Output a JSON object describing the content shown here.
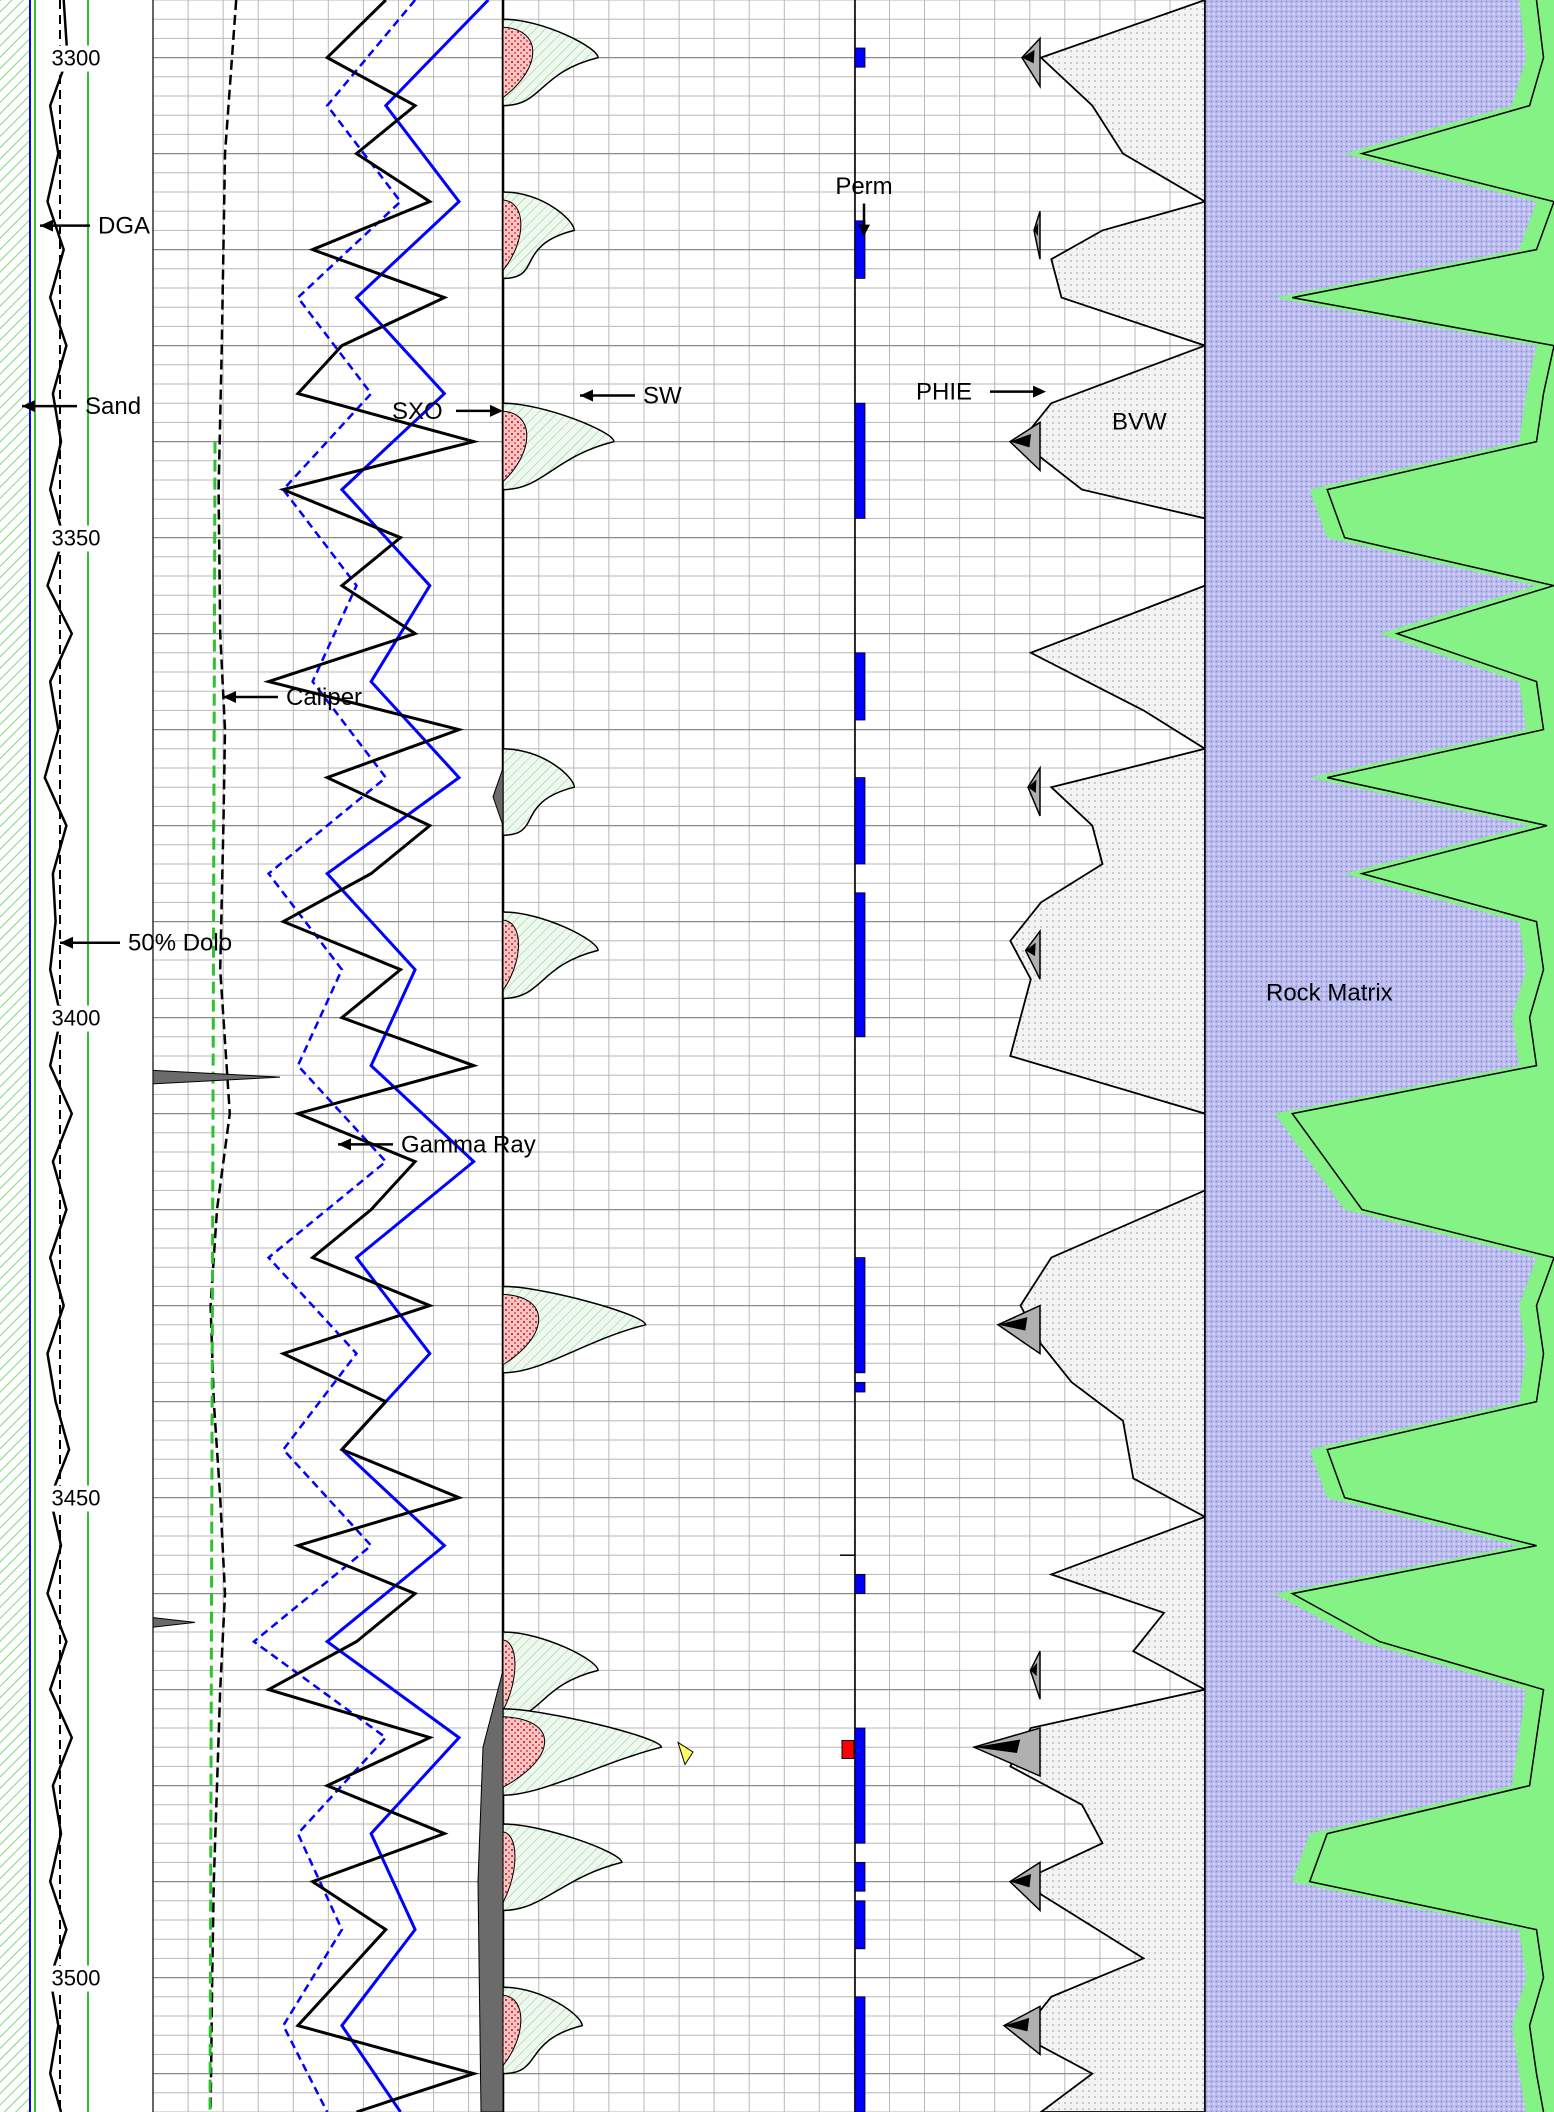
{
  "chart_data": {
    "type": "line",
    "depth_axis": {
      "start": 3294,
      "end": 3514,
      "labels": [
        3300,
        3350,
        3400,
        3450,
        3500
      ]
    },
    "colors": {
      "gamma_ray": "#000000",
      "caliper": "#000000",
      "resistivity_deep": "#0000ff",
      "resistivity_shallow": "#0000ff",
      "perm": "#0000ff",
      "perm_alert": "#ff0000",
      "rock_matrix_fill": "#b9bbee",
      "shale_fill": "#84f284",
      "bvw_fill": "#f0f0f0",
      "phie_fill": "#b0b0b0",
      "sw_fill": "#e4f4e4",
      "sxo_fill": "#f2b4b4",
      "clay_fill": "#6b6b6b"
    },
    "annotations": {
      "dga": "DGA",
      "sand": "Sand",
      "dolo": "50% Dolo",
      "caliper": "Caliper",
      "gamma_ray": "Gamma Ray",
      "sxo": "SXO",
      "sw": "SW",
      "perm": "Perm",
      "phie": "PHIE",
      "bvw": "BVW",
      "rock_matrix": "Rock Matrix"
    },
    "tracks": {
      "lithology_dga": {
        "depth": [
          3294,
          3300,
          3305,
          3310,
          3315,
          3320,
          3325,
          3330,
          3335,
          3340,
          3345,
          3350,
          3355,
          3360,
          3365,
          3370,
          3375,
          3380,
          3385,
          3390,
          3395,
          3400,
          3405,
          3410,
          3415,
          3420,
          3425,
          3430,
          3435,
          3440,
          3445,
          3450,
          3455,
          3460,
          3465,
          3470,
          3475,
          3480,
          3485,
          3490,
          3495,
          3500,
          3505,
          3510,
          3514
        ],
        "value": [
          0.55,
          0.62,
          0.3,
          0.45,
          0.25,
          0.55,
          0.3,
          0.6,
          0.35,
          0.5,
          0.3,
          0.55,
          0.25,
          0.7,
          0.3,
          0.45,
          0.2,
          0.6,
          0.35,
          0.4,
          0.3,
          0.5,
          0.3,
          0.7,
          0.35,
          0.6,
          0.3,
          0.55,
          0.25,
          0.4,
          0.65,
          0.3,
          0.5,
          0.25,
          0.6,
          0.3,
          0.7,
          0.35,
          0.5,
          0.3,
          0.6,
          0.3,
          0.45,
          0.3,
          0.5
        ]
      },
      "caliper": {
        "depth": [
          3294,
          3310,
          3330,
          3345,
          3360,
          3370,
          3380,
          3395,
          3410,
          3420,
          3430,
          3440,
          3450,
          3460,
          3470,
          3480,
          3490,
          3500,
          3514
        ],
        "value": [
          0.52,
          0.45,
          0.43,
          0.41,
          0.42,
          0.45,
          0.44,
          0.42,
          0.48,
          0.4,
          0.36,
          0.38,
          0.42,
          0.45,
          0.42,
          0.4,
          0.38,
          0.37,
          0.36
        ]
      },
      "gamma_ray": {
        "depth": [
          3294,
          3300,
          3305,
          3310,
          3315,
          3320,
          3325,
          3330,
          3335,
          3340,
          3345,
          3350,
          3355,
          3360,
          3365,
          3370,
          3375,
          3380,
          3385,
          3390,
          3395,
          3400,
          3405,
          3410,
          3415,
          3420,
          3425,
          3430,
          3435,
          3440,
          3445,
          3450,
          3455,
          3460,
          3465,
          3470,
          3475,
          3480,
          3485,
          3490,
          3495,
          3500,
          3505,
          3510,
          3514
        ],
        "value": [
          60,
          40,
          70,
          50,
          75,
          35,
          80,
          45,
          30,
          90,
          25,
          65,
          45,
          70,
          20,
          85,
          40,
          75,
          55,
          25,
          65,
          45,
          90,
          30,
          70,
          55,
          35,
          75,
          25,
          60,
          45,
          85,
          30,
          70,
          50,
          20,
          75,
          40,
          80,
          35,
          60,
          45,
          30,
          90,
          50
        ]
      },
      "resistivity_deep": {
        "depth": [
          3294,
          3305,
          3315,
          3325,
          3335,
          3345,
          3355,
          3365,
          3375,
          3385,
          3395,
          3405,
          3415,
          3425,
          3435,
          3445,
          3455,
          3465,
          3475,
          3485,
          3495,
          3505,
          3514
        ],
        "value": [
          95,
          60,
          85,
          50,
          80,
          45,
          75,
          55,
          85,
          40,
          70,
          55,
          90,
          50,
          75,
          45,
          80,
          40,
          85,
          55,
          70,
          45,
          65
        ]
      },
      "resistivity_shallow": {
        "depth": [
          3294,
          3305,
          3315,
          3325,
          3335,
          3345,
          3355,
          3365,
          3375,
          3385,
          3395,
          3405,
          3415,
          3425,
          3435,
          3445,
          3455,
          3465,
          3475,
          3485,
          3495,
          3505,
          3514
        ],
        "value": [
          70,
          40,
          65,
          30,
          55,
          25,
          50,
          35,
          60,
          20,
          45,
          30,
          60,
          20,
          50,
          25,
          55,
          15,
          60,
          30,
          45,
          25,
          40
        ]
      },
      "saturation_events": [
        {
          "depth": 3300,
          "sw_peak": 0.6,
          "sxo_peak": 0.2
        },
        {
          "depth": 3318,
          "sw_peak": 0.45,
          "sxo_peak": 0.1
        },
        {
          "depth": 3340,
          "sw_peak": 0.7,
          "sxo_peak": 0.15
        },
        {
          "depth": 3376,
          "sw_peak": 0.45,
          "sxo_peak": 0.0
        },
        {
          "depth": 3393,
          "sw_peak": 0.6,
          "sxo_peak": 0.08
        },
        {
          "depth": 3432,
          "sw_peak": 0.9,
          "sxo_peak": 0.25
        },
        {
          "depth": 3468,
          "sw_peak": 0.6,
          "sxo_peak": 0.05
        },
        {
          "depth": 3476,
          "sw_peak": 1.0,
          "sxo_peak": 0.3
        },
        {
          "depth": 3488,
          "sw_peak": 0.75,
          "sxo_peak": 0.05
        },
        {
          "depth": 3505,
          "sw_peak": 0.5,
          "sxo_peak": 0.1
        }
      ],
      "perm_segments": [
        {
          "top": 3299,
          "base": 3301
        },
        {
          "top": 3317,
          "base": 3323
        },
        {
          "top": 3336,
          "base": 3348
        },
        {
          "top": 3362,
          "base": 3369
        },
        {
          "top": 3375,
          "base": 3384
        },
        {
          "top": 3387,
          "base": 3402
        },
        {
          "top": 3425,
          "base": 3437
        },
        {
          "top": 3438,
          "base": 3439
        },
        {
          "top": 3458,
          "base": 3460
        },
        {
          "top": 3474,
          "base": 3486
        },
        {
          "top": 3488,
          "base": 3491
        },
        {
          "top": 3492,
          "base": 3497
        },
        {
          "top": 3502,
          "base": 3514
        }
      ],
      "bvw": {
        "depth": [
          3294,
          3300,
          3305,
          3310,
          3315,
          3318,
          3321,
          3325,
          3330,
          3336,
          3340,
          3345,
          3348,
          3355,
          3362,
          3368,
          3372,
          3376,
          3380,
          3384,
          3388,
          3392,
          3396,
          3400,
          3404,
          3410,
          3418,
          3425,
          3430,
          3434,
          3438,
          3442,
          3448,
          3452,
          3458,
          3462,
          3466,
          3470,
          3474,
          3478,
          3482,
          3486,
          3490,
          3494,
          3498,
          3502,
          3506,
          3510,
          3514
        ],
        "value": [
          0,
          0.8,
          0.55,
          0.4,
          0,
          0.5,
          0.75,
          0.7,
          0,
          0.75,
          0.9,
          0.6,
          0,
          0.0,
          0.85,
          0.3,
          0,
          0.75,
          0.55,
          0.5,
          0.8,
          0.95,
          0.85,
          0.9,
          0.95,
          0,
          0,
          0.75,
          0.9,
          0.8,
          0.65,
          0.4,
          0.35,
          0,
          0.75,
          0.2,
          0.35,
          0,
          0.85,
          0.95,
          0.6,
          0.5,
          0.9,
          0.6,
          0.3,
          0.75,
          0.9,
          0.55,
          0.8
        ]
      },
      "phie": {
        "depth": [
          3300,
          3318,
          3340,
          3376,
          3393,
          3432,
          3468,
          3476,
          3490,
          3505
        ],
        "value": [
          0.15,
          0.05,
          0.25,
          0.1,
          0.12,
          0.35,
          0.08,
          0.55,
          0.25,
          0.3
        ]
      },
      "rock_matrix": {
        "depth": [
          3294,
          3300,
          3305,
          3310,
          3315,
          3320,
          3325,
          3330,
          3335,
          3340,
          3345,
          3350,
          3355,
          3360,
          3365,
          3370,
          3375,
          3380,
          3385,
          3390,
          3395,
          3400,
          3405,
          3410,
          3415,
          3420,
          3425,
          3430,
          3435,
          3440,
          3445,
          3450,
          3455,
          3460,
          3465,
          3470,
          3475,
          3480,
          3485,
          3490,
          3495,
          3500,
          3505,
          3510,
          3514
        ],
        "value": [
          0.9,
          0.92,
          0.88,
          0.4,
          0.95,
          0.9,
          0.2,
          0.95,
          0.92,
          0.9,
          0.3,
          0.35,
          0.95,
          0.5,
          0.9,
          0.92,
          0.3,
          0.93,
          0.4,
          0.9,
          0.92,
          0.88,
          0.9,
          0.2,
          0.3,
          0.4,
          0.95,
          0.9,
          0.92,
          0.9,
          0.3,
          0.35,
          0.9,
          0.2,
          0.45,
          0.92,
          0.9,
          0.88,
          0.3,
          0.25,
          0.9,
          0.92,
          0.88,
          0.9,
          0.92
        ]
      }
    }
  }
}
